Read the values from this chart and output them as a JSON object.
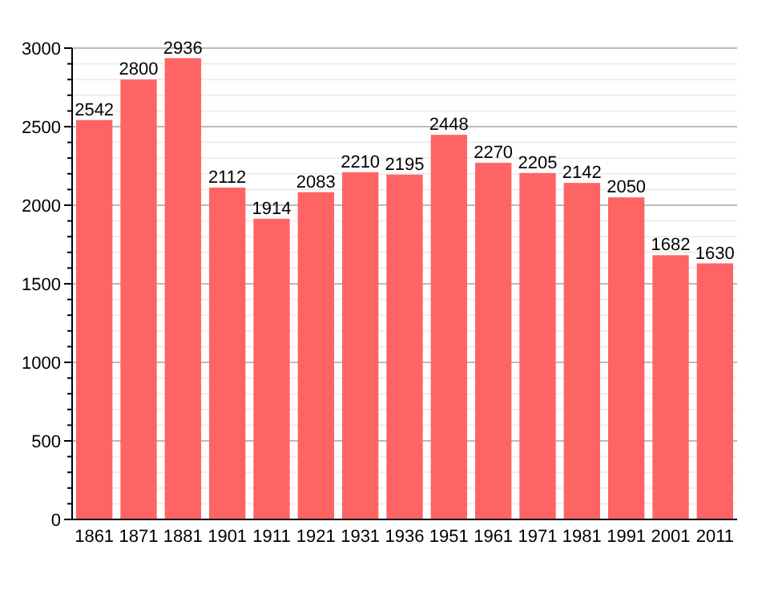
{
  "chart_data": {
    "type": "bar",
    "categories": [
      "1861",
      "1871",
      "1881",
      "1901",
      "1911",
      "1921",
      "1931",
      "1936",
      "1951",
      "1961",
      "1971",
      "1981",
      "1991",
      "2001",
      "2011"
    ],
    "values": [
      2542,
      2800,
      2936,
      2112,
      1914,
      2083,
      2210,
      2195,
      2448,
      2270,
      2205,
      2142,
      2050,
      1682,
      1630
    ],
    "color": "#ff6464",
    "data_labels": true,
    "grid": "y",
    "ylim": [
      0,
      3000
    ],
    "yticks": [
      0,
      {
        "value": 100,
        "label": null
      },
      {
        "value": 200,
        "label": null
      },
      {
        "value": 300,
        "label": null
      },
      {
        "value": 400,
        "label": null
      },
      500,
      {
        "value": 600,
        "label": null
      },
      {
        "value": 700,
        "label": null
      },
      {
        "value": 800,
        "label": null
      },
      {
        "value": 900,
        "label": null
      },
      1000,
      {
        "value": 1100,
        "label": null
      },
      {
        "value": 1200,
        "label": null
      },
      {
        "value": 1300,
        "label": null
      },
      {
        "value": 1400,
        "label": null
      },
      1500,
      {
        "value": 1600,
        "label": null
      },
      {
        "value": 1700,
        "label": null
      },
      {
        "value": 1800,
        "label": null
      },
      {
        "value": 1900,
        "label": null
      },
      2000,
      {
        "value": 2100,
        "label": null
      },
      {
        "value": 2200,
        "label": null
      },
      {
        "value": 2300,
        "label": null
      },
      {
        "value": 2400,
        "label": null
      },
      2500,
      {
        "value": 2600,
        "label": null
      },
      {
        "value": 2700,
        "label": null
      },
      {
        "value": 2800,
        "label": null
      },
      {
        "value": 2900,
        "label": null
      },
      3000
    ]
  }
}
